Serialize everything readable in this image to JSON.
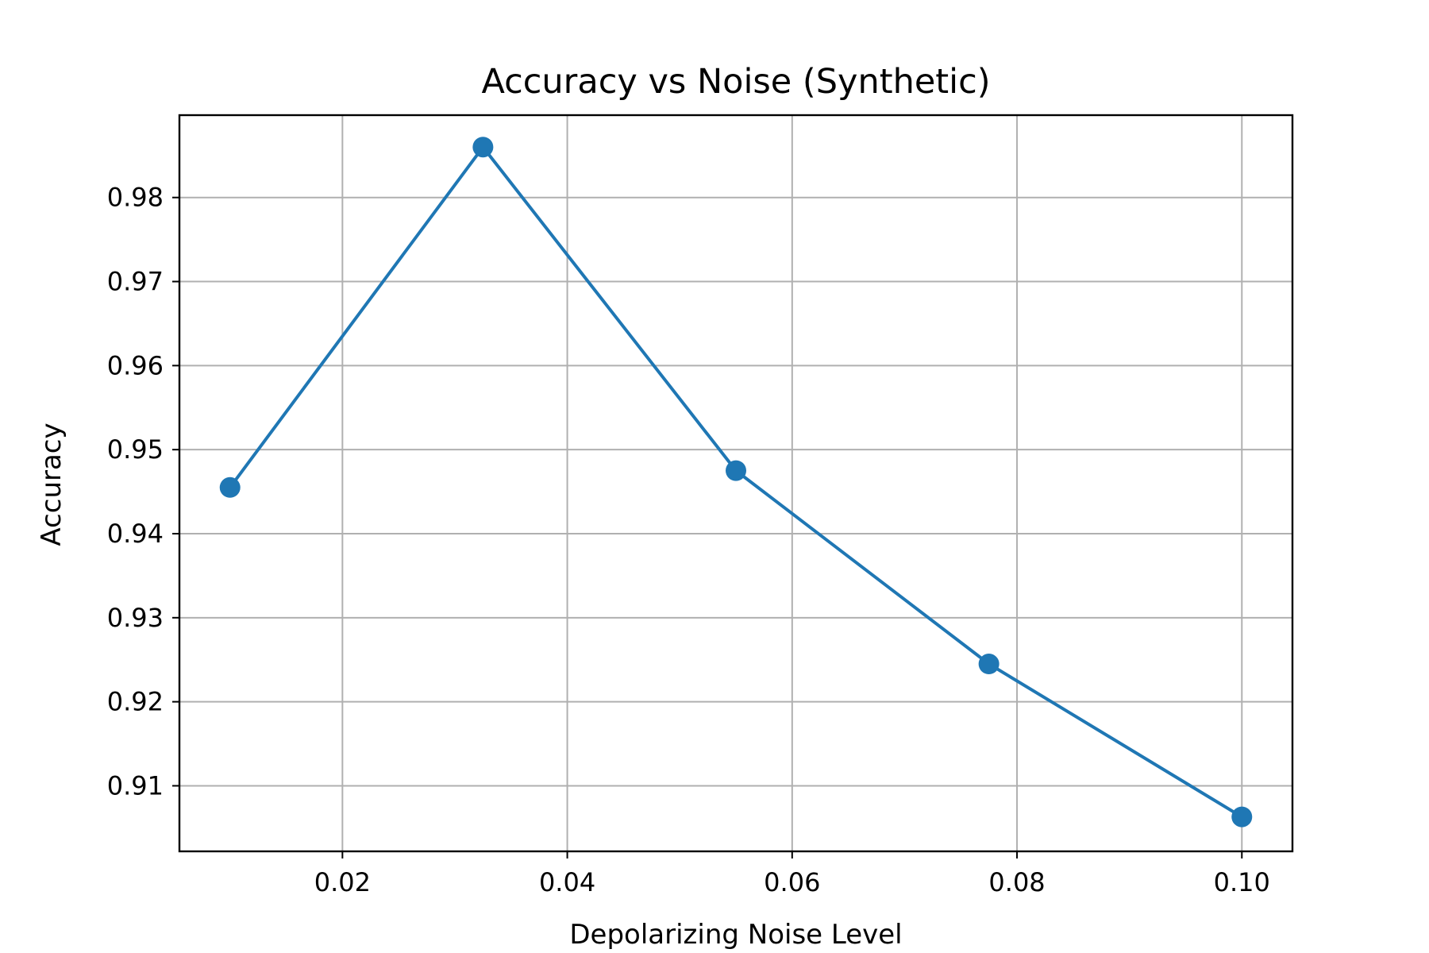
{
  "chart_data": {
    "type": "line",
    "title": "Accuracy vs Noise (Synthetic)",
    "xlabel": "Depolarizing Noise Level",
    "ylabel": "Accuracy",
    "x": [
      0.01,
      0.0325,
      0.055,
      0.0775,
      0.1
    ],
    "series": [
      {
        "values": [
          0.9455,
          0.986,
          0.9475,
          0.9245,
          0.9063
        ],
        "color": "#1f77b4",
        "marker": "circle"
      }
    ],
    "xlim": [
      0.0055,
      0.1045
    ],
    "ylim": [
      0.9022,
      0.9898
    ],
    "xticks": [
      0.02,
      0.04,
      0.06,
      0.08,
      0.1
    ],
    "xtick_labels": [
      "0.02",
      "0.04",
      "0.06",
      "0.08",
      "0.10"
    ],
    "yticks": [
      0.91,
      0.92,
      0.93,
      0.94,
      0.95,
      0.96,
      0.97,
      0.98
    ],
    "ytick_labels": [
      "0.91",
      "0.92",
      "0.93",
      "0.94",
      "0.95",
      "0.96",
      "0.97",
      "0.98"
    ],
    "grid": true,
    "legend": "none"
  }
}
